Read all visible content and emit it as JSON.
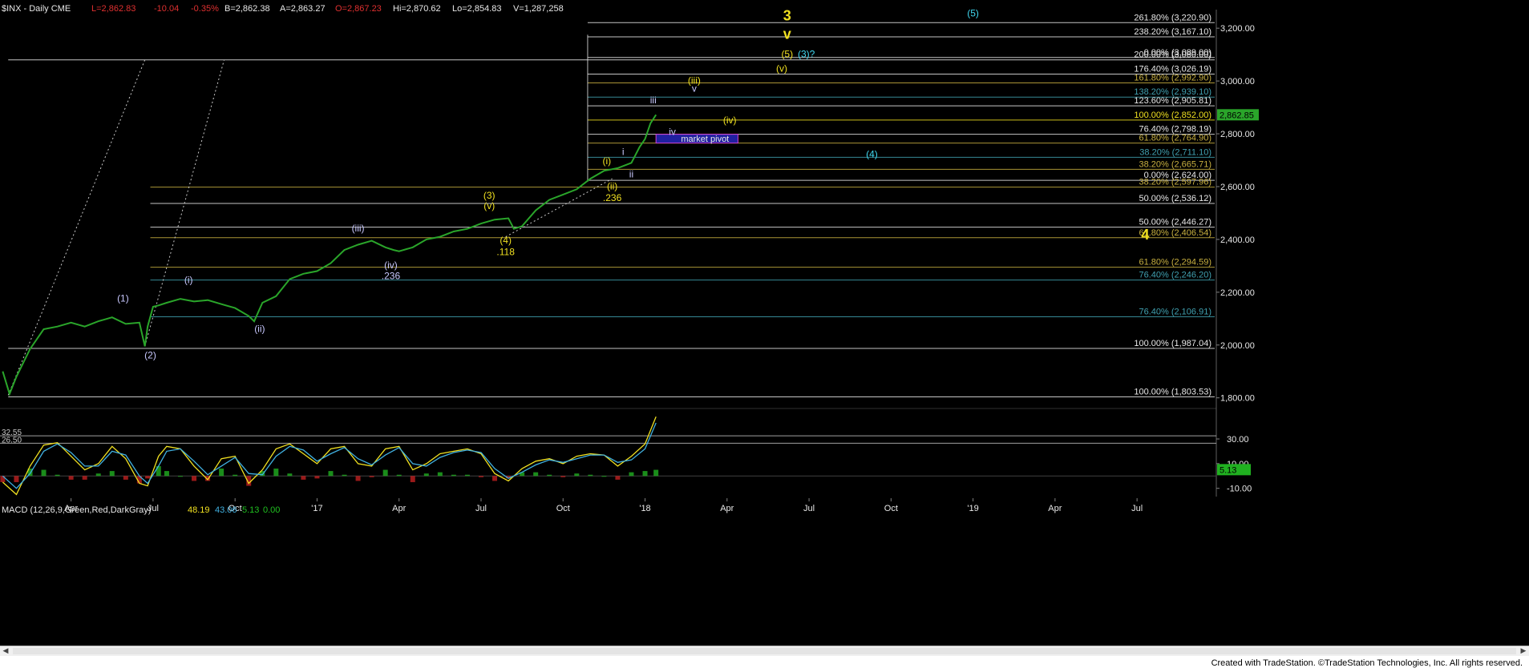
{
  "header": {
    "symbol": "$INX - Daily CME",
    "last": "L=2,862.83",
    "change": "-10.04",
    "change_pct": "-0.35%",
    "bid": "B=2,862.38",
    "ask": "A=2,863.27",
    "open": "O=2,867.23",
    "high": "Hi=2,870.62",
    "low": "Lo=2,854.83",
    "volume": "V=1,287,258"
  },
  "colors": {
    "background": "#000000",
    "price_line": "#2aa52a",
    "yellow": "#f0e020",
    "cyan": "#40d8f0",
    "lavender": "#c8c8ff",
    "white": "#e8e8e8",
    "olive": "#c8b040",
    "teal": "#40a0b0",
    "macd": "#f0e020",
    "signal": "#40b0e0",
    "hist_pos": "#20b020",
    "hist_neg": "#c02020",
    "pivot_box": "#2020a0",
    "pivot_border": "#d040d0"
  },
  "chart_data": [
    {
      "type": "line",
      "title": "$INX - Daily CME",
      "y_axis": {
        "ticks": [
          1800,
          2000,
          2200,
          2400,
          2600,
          2800,
          3000,
          3200
        ],
        "labels": [
          "1,800.00",
          "2,000.00",
          "2,200.00",
          "2,400.00",
          "2,600.00",
          "2,800.00",
          "3,000.00",
          "3,200.00"
        ],
        "range": [
          1790,
          3240
        ]
      },
      "x_axis": {
        "labels": [
          "Apr",
          "Jul",
          "Oct",
          "'17",
          "Apr",
          "Jul",
          "Oct",
          "'18",
          "Apr",
          "Jul",
          "Oct",
          "'19",
          "Apr",
          "Jul"
        ],
        "month_index": [
          2,
          5,
          8,
          11,
          14,
          17,
          20,
          23,
          26,
          29,
          32,
          35,
          38,
          41
        ],
        "range": [
          -0.6,
          43.9
        ]
      },
      "series": [
        {
          "x": [
            -0.5,
            -0.25,
            0,
            0.5,
            1,
            1.5,
            2,
            2.5,
            3,
            3.5,
            4,
            4.5,
            4.7,
            4.8,
            5.0,
            5.2,
            5.5,
            6,
            6.5,
            7,
            7.5,
            8,
            8.5,
            8.7,
            9,
            9.5,
            10,
            10.5,
            11,
            11.5,
            12,
            12.5,
            13,
            13.5,
            13.8,
            14,
            14.5,
            15,
            15.5,
            16,
            16.5,
            17,
            17.5,
            18,
            18.2,
            18.5,
            19,
            19.5,
            20,
            20.5,
            21,
            21.5,
            22,
            22.5,
            22.8,
            23,
            23.2,
            23.4
          ],
          "values": [
            1900,
            1815,
            1880,
            1985,
            2060,
            2070,
            2085,
            2070,
            2090,
            2105,
            2080,
            2085,
            1995,
            2070,
            2145,
            2150,
            2160,
            2175,
            2165,
            2170,
            2155,
            2140,
            2110,
            2090,
            2160,
            2185,
            2250,
            2270,
            2280,
            2310,
            2360,
            2380,
            2395,
            2370,
            2360,
            2355,
            2370,
            2400,
            2410,
            2430,
            2440,
            2460,
            2475,
            2480,
            2440,
            2450,
            2510,
            2550,
            2570,
            2590,
            2630,
            2660,
            2670,
            2690,
            2750,
            2780,
            2840,
            2872
          ]
        }
      ],
      "fib_levels": [
        {
          "pct": "261.80%",
          "value": "3,220.90",
          "color": "#e8e8e8"
        },
        {
          "pct": "238.20%",
          "value": "3,167.10",
          "color": "#e8e8e8"
        },
        {
          "pct": "0.00%",
          "value": "3,089.00",
          "color": "#e8e8e8"
        },
        {
          "pct": "200.00%",
          "value": "3,080.00",
          "color": "#e8e8e8"
        },
        {
          "pct": "176.40%",
          "value": "3,026.19",
          "color": "#e8e8e8"
        },
        {
          "pct": "161.80%",
          "value": "2,992.90",
          "color": "#c8b040"
        },
        {
          "pct": "138.20%",
          "value": "2,939.10",
          "color": "#40a0b0"
        },
        {
          "pct": "123.60%",
          "value": "2,905.81",
          "color": "#e8e8e8"
        },
        {
          "pct": "100.00%",
          "value": "2,852.00",
          "color": "#f0e020"
        },
        {
          "pct": "76.40%",
          "value": "2,798.19",
          "color": "#e8e8e8"
        },
        {
          "pct": "61.80%",
          "value": "2,764.90",
          "color": "#c8b040"
        },
        {
          "pct": "38.20%",
          "value": "2,711.10",
          "color": "#40a0b0"
        },
        {
          "pct": "38.20%",
          "value": "2,665.71",
          "color": "#c8b040"
        },
        {
          "pct": "0.00%",
          "value": "2,624.00",
          "color": "#e8e8e8"
        },
        {
          "pct": "38.20%",
          "value": "2,597.96",
          "color": "#c8b040"
        },
        {
          "pct": "50.00%",
          "value": "2,536.12",
          "color": "#e8e8e8"
        },
        {
          "pct": "50.00%",
          "value": "2,446.27",
          "color": "#e8e8e8"
        },
        {
          "pct": "61.80%",
          "value": "2,406.54",
          "color": "#c8b040"
        },
        {
          "pct": "61.80%",
          "value": "2,294.59",
          "color": "#c8b040"
        },
        {
          "pct": "76.40%",
          "value": "2,246.20",
          "color": "#40a0b0"
        },
        {
          "pct": "76.40%",
          "value": "2,106.91",
          "color": "#40a0b0"
        },
        {
          "pct": "100.00%",
          "value": "1,987.04",
          "color": "#e8e8e8"
        },
        {
          "pct": "100.00%",
          "value": "1,803.53",
          "color": "#e8e8e8"
        }
      ],
      "wave_labels": [
        {
          "text": "3",
          "x": 28.2,
          "y": 3230,
          "color": "#f0e020",
          "big": true
        },
        {
          "text": "v",
          "x": 28.2,
          "y": 3160,
          "color": "#f0e020",
          "big": true
        },
        {
          "text": "(5)",
          "x": 28.2,
          "y": 3090,
          "color": "#f0e020"
        },
        {
          "text": "(3)?",
          "x": 28.9,
          "y": 3090,
          "color": "#40d8f0"
        },
        {
          "text": "(5)",
          "x": 35.0,
          "y": 3245,
          "color": "#40d8f0"
        },
        {
          "text": "(v)",
          "x": 28.0,
          "y": 3035,
          "color": "#f0e020"
        },
        {
          "text": "(iii)",
          "x": 24.8,
          "y": 2990,
          "color": "#f0e020"
        },
        {
          "text": "v",
          "x": 24.8,
          "y": 2960,
          "color": "#c8c8ff"
        },
        {
          "text": "iii",
          "x": 23.3,
          "y": 2915,
          "color": "#c8c8ff"
        },
        {
          "text": "(iv)",
          "x": 26.1,
          "y": 2840,
          "color": "#f0e020"
        },
        {
          "text": "iv",
          "x": 24.0,
          "y": 2795,
          "color": "#c8c8ff"
        },
        {
          "text": "(4)",
          "x": 31.3,
          "y": 2710,
          "color": "#40d8f0"
        },
        {
          "text": "i",
          "x": 22.2,
          "y": 2720,
          "color": "#c8c8ff"
        },
        {
          "text": "(i)",
          "x": 21.6,
          "y": 2685,
          "color": "#f0e020"
        },
        {
          "text": "ii",
          "x": 22.5,
          "y": 2635,
          "color": "#c8c8ff"
        },
        {
          "text": "(ii)",
          "x": 21.8,
          "y": 2590,
          "color": "#f0e020"
        },
        {
          "text": ".236",
          "x": 21.8,
          "y": 2545,
          "color": "#f0e020"
        },
        {
          "text": "(3)",
          "x": 17.3,
          "y": 2555,
          "color": "#f0e020"
        },
        {
          "text": "(v)",
          "x": 17.3,
          "y": 2515,
          "color": "#f0e020"
        },
        {
          "text": "(4)",
          "x": 17.9,
          "y": 2385,
          "color": "#f0e020"
        },
        {
          "text": ".118",
          "x": 17.9,
          "y": 2340,
          "color": "#f0e020"
        },
        {
          "text": "(iii)",
          "x": 12.5,
          "y": 2430,
          "color": "#c8c8ff"
        },
        {
          "text": "(iv)",
          "x": 13.7,
          "y": 2290,
          "color": "#c8c8ff"
        },
        {
          "text": ".236",
          "x": 13.7,
          "y": 2250,
          "color": "#c8c8ff"
        },
        {
          "text": "(i)",
          "x": 6.3,
          "y": 2235,
          "color": "#c8c8ff"
        },
        {
          "text": "(ii)",
          "x": 8.9,
          "y": 2050,
          "color": "#c8c8ff"
        },
        {
          "text": "(1)",
          "x": 3.9,
          "y": 2165,
          "color": "#c8c8ff"
        },
        {
          "text": "(2)",
          "x": 4.9,
          "y": 1950,
          "color": "#c8c8ff"
        },
        {
          "text": "4",
          "x": 41.3,
          "y": 2400,
          "color": "#f0e020",
          "big": true
        }
      ],
      "market_pivot": {
        "label": "market pivot",
        "low": 2764.9,
        "high": 2798.19
      },
      "last_price_label": "2,862.85"
    },
    {
      "type": "line",
      "title": "MACD (12,26,9,Green,Red,DarkGray)",
      "legend": {
        "macd": "48.19",
        "signal": "43.06",
        "diff": "5.13",
        "zero": "0.00"
      },
      "y_axis": {
        "ticks": [
          30,
          10,
          -10
        ],
        "labels": [
          "30.00",
          "10.00",
          "-10.00"
        ],
        "range": [
          -18,
          43
        ]
      },
      "ref_lines": [
        {
          "value": 32.55,
          "label": "32.55"
        },
        {
          "value": 26.5,
          "label": "26.50"
        }
      ],
      "last_value_label": "5.13",
      "series": [
        {
          "name": "MACD",
          "x": [
            -0.5,
            0,
            0.5,
            1,
            1.5,
            2,
            2.5,
            3,
            3.5,
            4,
            4.5,
            4.8,
            5.2,
            5.5,
            6,
            6.5,
            7,
            7.5,
            8,
            8.5,
            9,
            9.5,
            10,
            10.5,
            11,
            11.5,
            12,
            12.5,
            13,
            13.5,
            14,
            14.5,
            15,
            15.5,
            16,
            16.5,
            17,
            17.5,
            18,
            18.5,
            19,
            19.5,
            20,
            20.5,
            21,
            21.5,
            22,
            22.5,
            23,
            23.4
          ],
          "values": [
            -5,
            -15,
            8,
            25,
            27,
            16,
            5,
            10,
            24,
            14,
            -6,
            -8,
            16,
            24,
            22,
            8,
            -3,
            14,
            16,
            -6,
            5,
            22,
            26,
            18,
            10,
            22,
            24,
            10,
            8,
            22,
            24,
            5,
            10,
            18,
            20,
            22,
            18,
            2,
            -4,
            6,
            12,
            14,
            10,
            16,
            18,
            17,
            8,
            16,
            26,
            48
          ]
        },
        {
          "name": "Signal",
          "x": [
            -0.5,
            0,
            0.5,
            1,
            1.5,
            2,
            2.5,
            3,
            3.5,
            4,
            4.5,
            4.8,
            5.2,
            5.5,
            6,
            6.5,
            7,
            7.5,
            8,
            8.5,
            9,
            9.5,
            10,
            10.5,
            11,
            11.5,
            12,
            12.5,
            13,
            13.5,
            14,
            14.5,
            15,
            15.5,
            16,
            16.5,
            17,
            17.5,
            18,
            18.5,
            19,
            19.5,
            20,
            20.5,
            21,
            21.5,
            22,
            22.5,
            23,
            23.4
          ],
          "values": [
            0,
            -10,
            2,
            20,
            26,
            19,
            8,
            8,
            20,
            17,
            0,
            -6,
            8,
            20,
            22,
            12,
            1,
            8,
            15,
            2,
            1,
            16,
            24,
            21,
            12,
            18,
            23,
            14,
            9,
            17,
            23,
            10,
            8,
            15,
            19,
            21,
            19,
            6,
            -2,
            3,
            9,
            13,
            11,
            14,
            17,
            17,
            11,
            13,
            22,
            43
          ]
        }
      ]
    }
  ],
  "scrollbar": {
    "left": "◀",
    "right": "▶"
  },
  "footer": {
    "text": "Created with TradeStation. ©TradeStation Technologies, Inc. All rights reserved."
  }
}
